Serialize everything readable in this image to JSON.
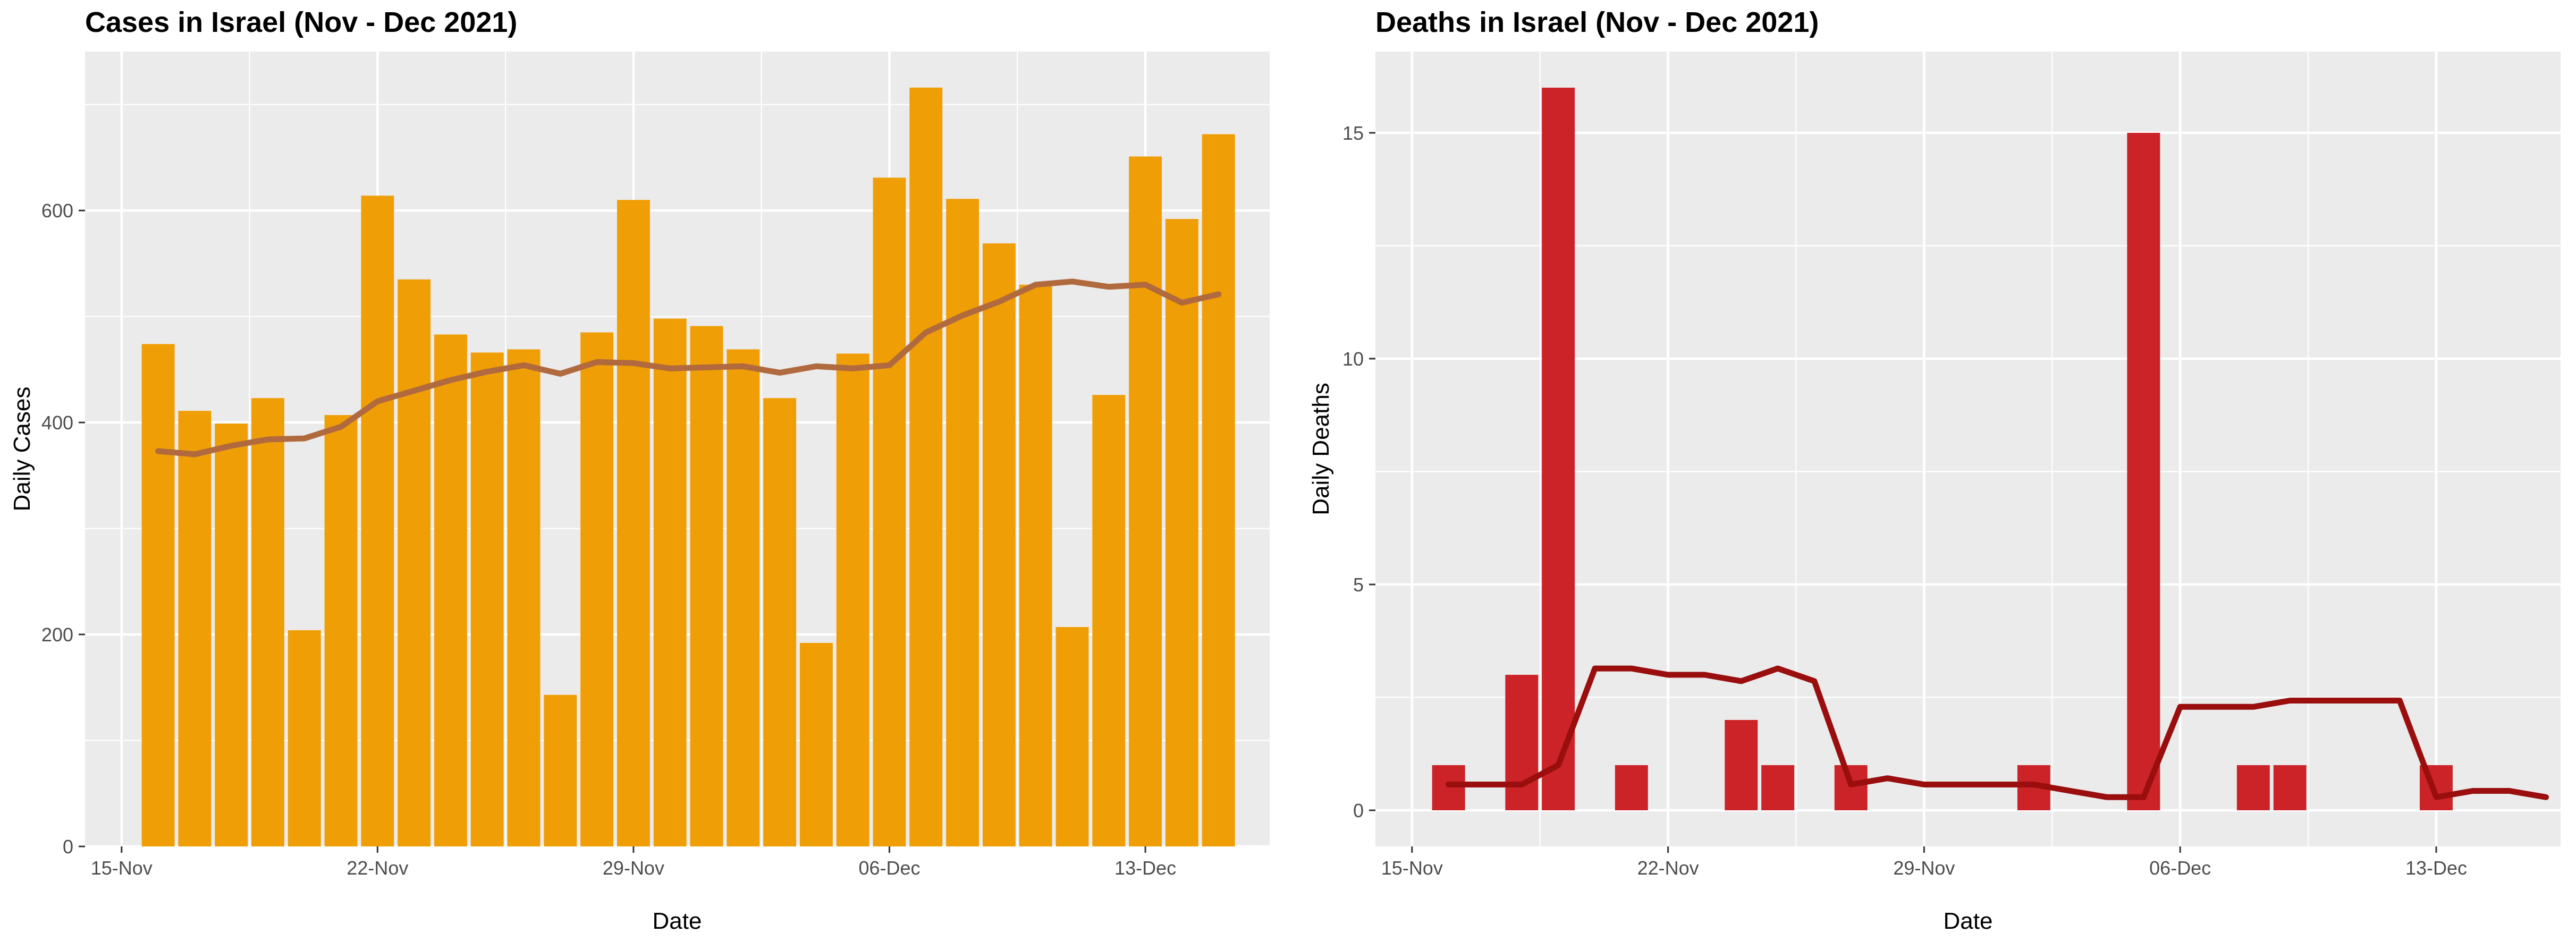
{
  "chart_data": [
    {
      "type": "bar",
      "title": "Cases in Israel (Nov - Dec 2021)",
      "xlabel": "Date",
      "ylabel": "Daily Cases",
      "x_ticks": [
        "15-Nov",
        "22-Nov",
        "29-Nov",
        "06-Dec",
        "13-Dec"
      ],
      "y_ticks": [
        "0",
        "200",
        "400",
        "600"
      ],
      "ylim": [
        0,
        750
      ],
      "grid": true,
      "colors": {
        "bar": "#F09E05",
        "line": "#B06A3E",
        "panel": "#EBEBEB",
        "grid": "#FFFFFF"
      },
      "series": [
        {
          "values": [
            [
              "2021-11-16",
              474
            ],
            [
              "2021-11-17",
              411
            ],
            [
              "2021-11-18",
              399
            ],
            [
              "2021-11-19",
              423
            ],
            [
              "2021-11-20",
              204
            ],
            [
              "2021-11-21",
              407
            ],
            [
              "2021-11-22",
              614
            ],
            [
              "2021-11-23",
              535
            ],
            [
              "2021-11-24",
              483
            ],
            [
              "2021-11-25",
              466
            ],
            [
              "2021-11-26",
              469
            ],
            [
              "2021-11-27",
              143
            ],
            [
              "2021-11-28",
              485
            ],
            [
              "2021-11-29",
              610
            ],
            [
              "2021-11-30",
              498
            ],
            [
              "2021-12-01",
              491
            ],
            [
              "2021-12-02",
              469
            ],
            [
              "2021-12-03",
              423
            ],
            [
              "2021-12-04",
              192
            ],
            [
              "2021-12-05",
              465
            ],
            [
              "2021-12-06",
              631
            ],
            [
              "2021-12-07",
              716
            ],
            [
              "2021-12-08",
              611
            ],
            [
              "2021-12-09",
              569
            ],
            [
              "2021-12-10",
              530
            ],
            [
              "2021-12-11",
              207
            ],
            [
              "2021-12-12",
              426
            ],
            [
              "2021-12-13",
              651
            ],
            [
              "2021-12-14",
              592
            ],
            [
              "2021-12-15",
              672
            ]
          ]
        },
        {
          "values": [
            [
              "2021-11-16",
              373
            ],
            [
              "2021-11-17",
              370
            ],
            [
              "2021-11-18",
              378
            ],
            [
              "2021-11-19",
              384
            ],
            [
              "2021-11-20",
              385
            ],
            [
              "2021-11-21",
              396
            ],
            [
              "2021-11-22",
              420
            ],
            [
              "2021-11-23",
              430
            ],
            [
              "2021-11-24",
              440
            ],
            [
              "2021-11-25",
              448
            ],
            [
              "2021-11-26",
              454
            ],
            [
              "2021-11-27",
              446
            ],
            [
              "2021-11-28",
              457
            ],
            [
              "2021-11-29",
              456
            ],
            [
              "2021-11-30",
              451
            ],
            [
              "2021-12-01",
              452
            ],
            [
              "2021-12-02",
              453
            ],
            [
              "2021-12-03",
              447
            ],
            [
              "2021-12-04",
              453
            ],
            [
              "2021-12-05",
              451
            ],
            [
              "2021-12-06",
              454
            ],
            [
              "2021-12-07",
              485
            ],
            [
              "2021-12-08",
              501
            ],
            [
              "2021-12-09",
              514
            ],
            [
              "2021-12-10",
              530
            ],
            [
              "2021-12-11",
              533
            ],
            [
              "2021-12-12",
              528
            ],
            [
              "2021-12-13",
              530
            ],
            [
              "2021-12-14",
              513
            ],
            [
              "2021-12-15",
              521
            ]
          ]
        }
      ]
    },
    {
      "type": "bar",
      "title": "Deaths in Israel (Nov - Dec 2021)",
      "xlabel": "Date",
      "ylabel": "Daily Deaths",
      "x_ticks": [
        "15-Nov",
        "22-Nov",
        "29-Nov",
        "06-Dec",
        "13-Dec"
      ],
      "y_ticks": [
        "0",
        "5",
        "10",
        "15"
      ],
      "ylim": [
        -0.8,
        16.8
      ],
      "grid": true,
      "colors": {
        "bar": "#CB2327",
        "line": "#9A0E0E",
        "panel": "#EBEBEB",
        "grid": "#FFFFFF"
      },
      "series": [
        {
          "values": [
            [
              "2021-11-16",
              1
            ],
            [
              "2021-11-17",
              0
            ],
            [
              "2021-11-18",
              3
            ],
            [
              "2021-11-19",
              16
            ],
            [
              "2021-11-20",
              0
            ],
            [
              "2021-11-21",
              1
            ],
            [
              "2021-11-22",
              0
            ],
            [
              "2021-11-23",
              0
            ],
            [
              "2021-11-24",
              2
            ],
            [
              "2021-11-25",
              1
            ],
            [
              "2021-11-26",
              0
            ],
            [
              "2021-11-27",
              1
            ],
            [
              "2021-11-28",
              0
            ],
            [
              "2021-11-29",
              0
            ],
            [
              "2021-11-30",
              0
            ],
            [
              "2021-12-01",
              0
            ],
            [
              "2021-12-02",
              1
            ],
            [
              "2021-12-03",
              0
            ],
            [
              "2021-12-04",
              0
            ],
            [
              "2021-12-05",
              15
            ],
            [
              "2021-12-06",
              0
            ],
            [
              "2021-12-07",
              0
            ],
            [
              "2021-12-08",
              1
            ],
            [
              "2021-12-09",
              1
            ],
            [
              "2021-12-10",
              0
            ],
            [
              "2021-12-11",
              0
            ],
            [
              "2021-12-12",
              0
            ],
            [
              "2021-12-13",
              1
            ],
            [
              "2021-12-14",
              0
            ],
            [
              "2021-12-15",
              0
            ]
          ]
        },
        {
          "values": [
            [
              "2021-11-16",
              0.57
            ],
            [
              "2021-11-17",
              0.57
            ],
            [
              "2021-11-18",
              0.57
            ],
            [
              "2021-11-19",
              1.0
            ],
            [
              "2021-11-20",
              3.14
            ],
            [
              "2021-11-21",
              3.14
            ],
            [
              "2021-11-22",
              3.0
            ],
            [
              "2021-11-23",
              3.0
            ],
            [
              "2021-11-24",
              2.86
            ],
            [
              "2021-11-25",
              3.14
            ],
            [
              "2021-11-26",
              2.86
            ],
            [
              "2021-11-27",
              0.57
            ],
            [
              "2021-11-28",
              0.71
            ],
            [
              "2021-11-29",
              0.57
            ],
            [
              "2021-11-30",
              0.57
            ],
            [
              "2021-12-01",
              0.57
            ],
            [
              "2021-12-02",
              0.57
            ],
            [
              "2021-12-03",
              0.43
            ],
            [
              "2021-12-04",
              0.29
            ],
            [
              "2021-12-05",
              0.29
            ],
            [
              "2021-12-06",
              2.29
            ],
            [
              "2021-12-07",
              2.29
            ],
            [
              "2021-12-08",
              2.29
            ],
            [
              "2021-12-09",
              2.43
            ],
            [
              "2021-12-10",
              2.43
            ],
            [
              "2021-12-11",
              2.43
            ],
            [
              "2021-12-12",
              2.43
            ],
            [
              "2021-12-13",
              0.29
            ],
            [
              "2021-12-14",
              0.43
            ],
            [
              "2021-12-15",
              0.43
            ],
            [
              "2021-12-16",
              0.29
            ]
          ]
        }
      ]
    }
  ]
}
